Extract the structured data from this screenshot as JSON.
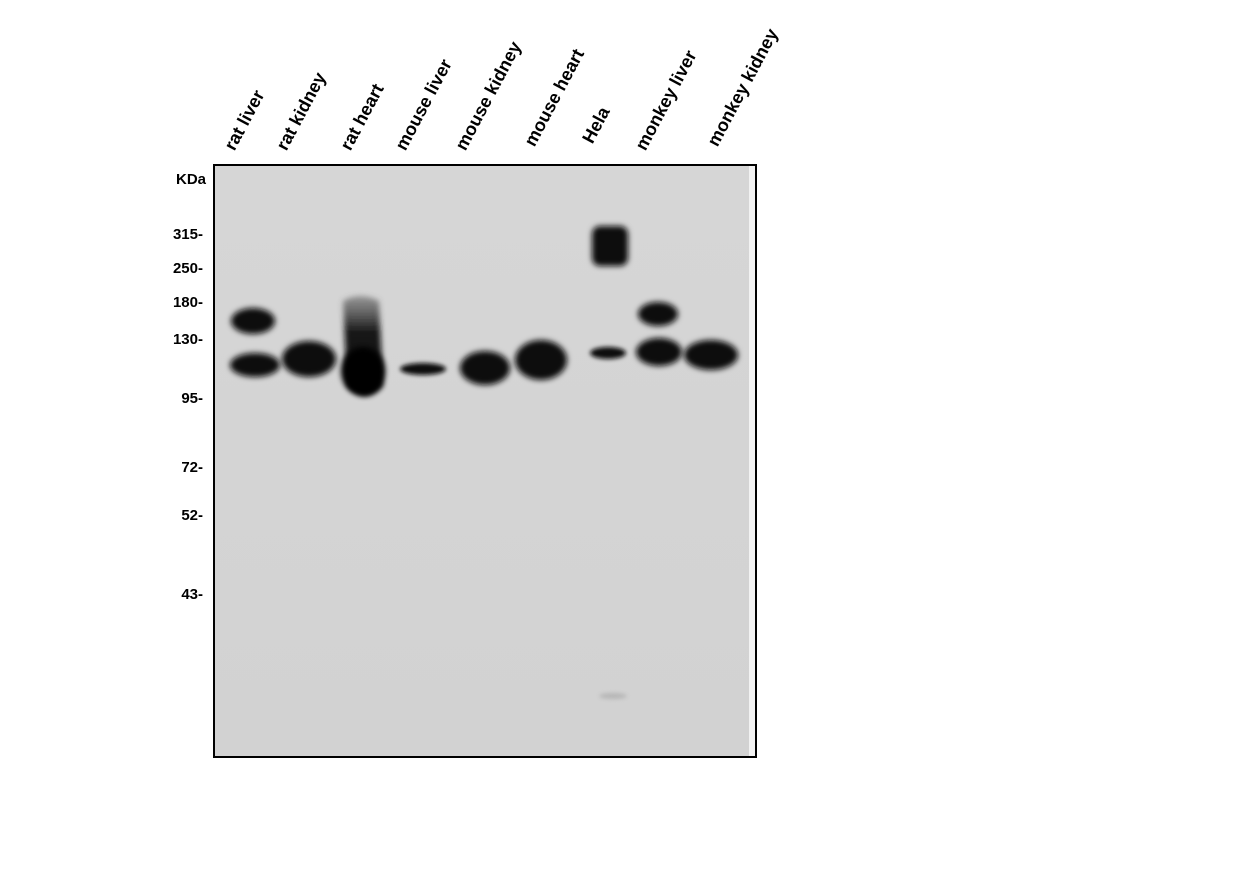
{
  "blot": {
    "lanes": [
      "rat liver",
      "rat kidney",
      "rat heart",
      "mouse liver",
      "mouse kidney",
      "mouse heart",
      "Hela",
      "monkey liver",
      "monkey kidney"
    ],
    "unit_label": "KDa",
    "markers": [
      "315-",
      "250-",
      "180-",
      "130-",
      "95-",
      "72-",
      "52-",
      "43-"
    ],
    "background_color": "#d3d3d3",
    "band_color": "#0a0a0a"
  }
}
